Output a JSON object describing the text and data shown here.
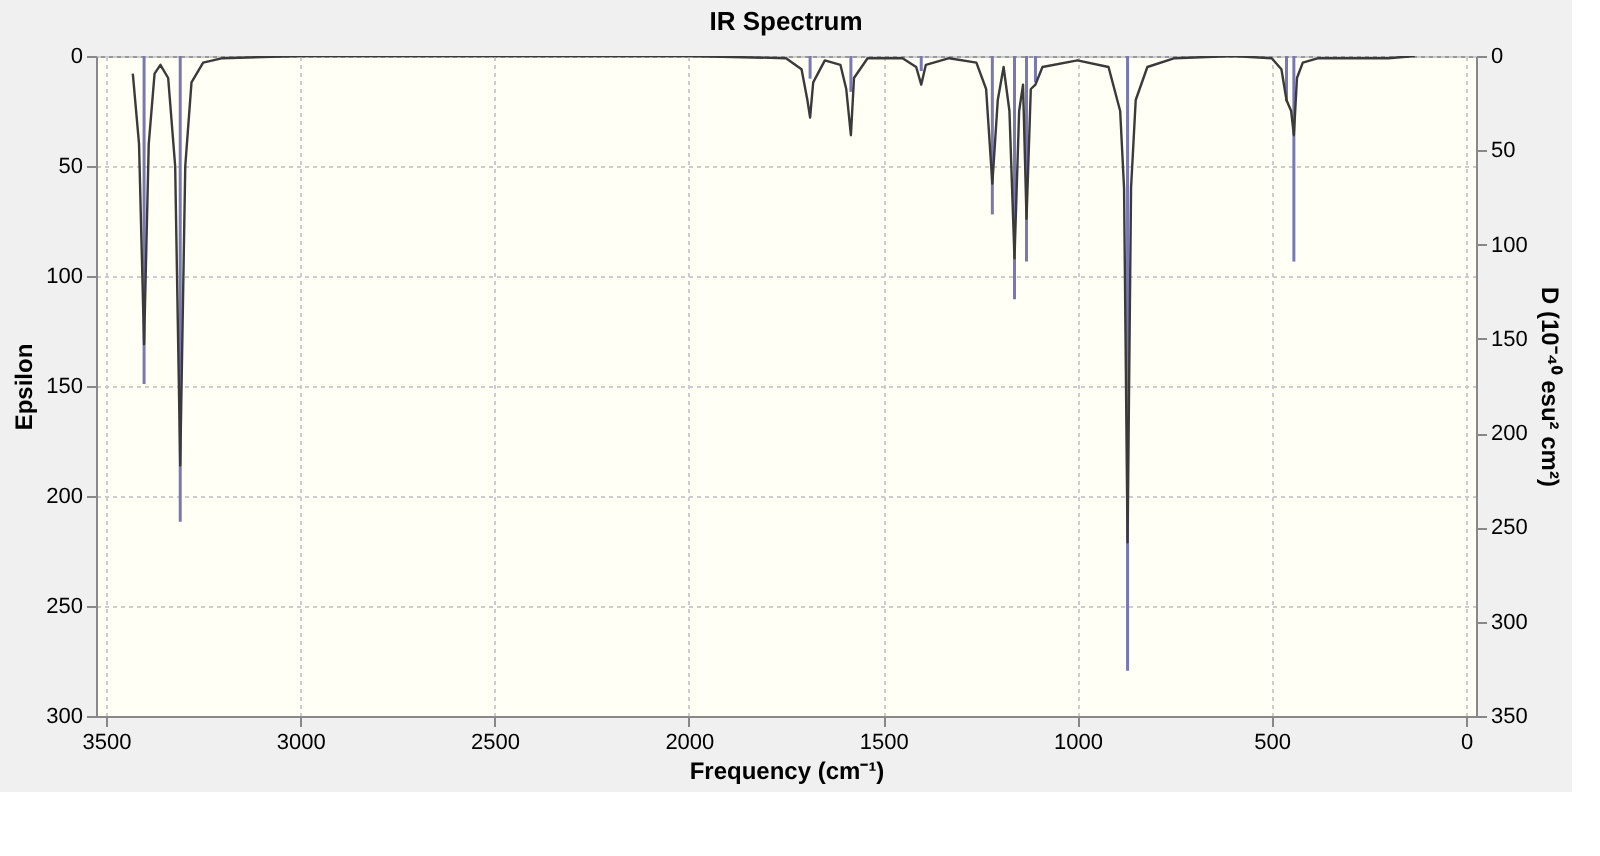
{
  "chart_data": {
    "type": "line",
    "title": "IR Spectrum",
    "xlabel": "Frequency (cm⁻¹)",
    "ylabel": "Epsilon",
    "y2label": "D (10⁻⁴⁰ esu² cm²)",
    "xlim": [
      3500,
      0
    ],
    "xticks": [
      3500,
      3000,
      2500,
      2000,
      1500,
      1000,
      500,
      0
    ],
    "ylim": [
      300,
      0
    ],
    "yticks": [
      0,
      50,
      100,
      150,
      200,
      250,
      300
    ],
    "y2lim": [
      350,
      0
    ],
    "y2ticks": [
      0,
      50,
      100,
      150,
      200,
      250,
      300,
      350
    ],
    "grid": true,
    "marker": "none",
    "line_style": "solid",
    "series": [
      {
        "color": "#3a3a3a",
        "x": [
          3431,
          3415,
          3402,
          3390,
          3375,
          3360,
          3340,
          3322,
          3309,
          3296,
          3280,
          3250,
          3200,
          3000,
          2000,
          1750,
          1710,
          1695,
          1688,
          1680,
          1650,
          1610,
          1595,
          1583,
          1575,
          1540,
          1450,
          1415,
          1402,
          1390,
          1330,
          1260,
          1235,
          1219,
          1205,
          1190,
          1175,
          1162,
          1150,
          1140,
          1131,
          1120,
          1108,
          1090,
          1000,
          920,
          890,
          880,
          871,
          862,
          850,
          820,
          750,
          600,
          500,
          475,
          462,
          450,
          443,
          435,
          420,
          380,
          200,
          132
        ],
        "values": [
          8,
          40,
          131,
          40,
          8,
          4,
          10,
          50,
          186,
          50,
          12,
          3,
          1,
          0,
          0,
          1,
          6,
          20,
          28,
          12,
          2,
          4,
          15,
          36,
          10,
          1,
          1,
          5,
          13,
          4,
          1,
          3,
          15,
          58,
          20,
          5,
          25,
          92,
          25,
          13,
          74,
          15,
          13,
          5,
          2,
          5,
          25,
          60,
          221,
          60,
          20,
          5,
          1,
          0,
          1,
          6,
          20,
          25,
          36,
          10,
          3,
          1,
          1,
          0
        ]
      },
      {
        "type": "bar",
        "axis": "y2",
        "color": "#7878b4",
        "x": [
          3402,
          3309,
          1688,
          1583,
          1402,
          1219,
          1162,
          1131,
          1108,
          871,
          462,
          443
        ],
        "values": [
          174,
          247,
          12,
          19,
          8,
          84,
          129,
          109,
          14,
          326,
          24,
          109
        ]
      }
    ]
  }
}
